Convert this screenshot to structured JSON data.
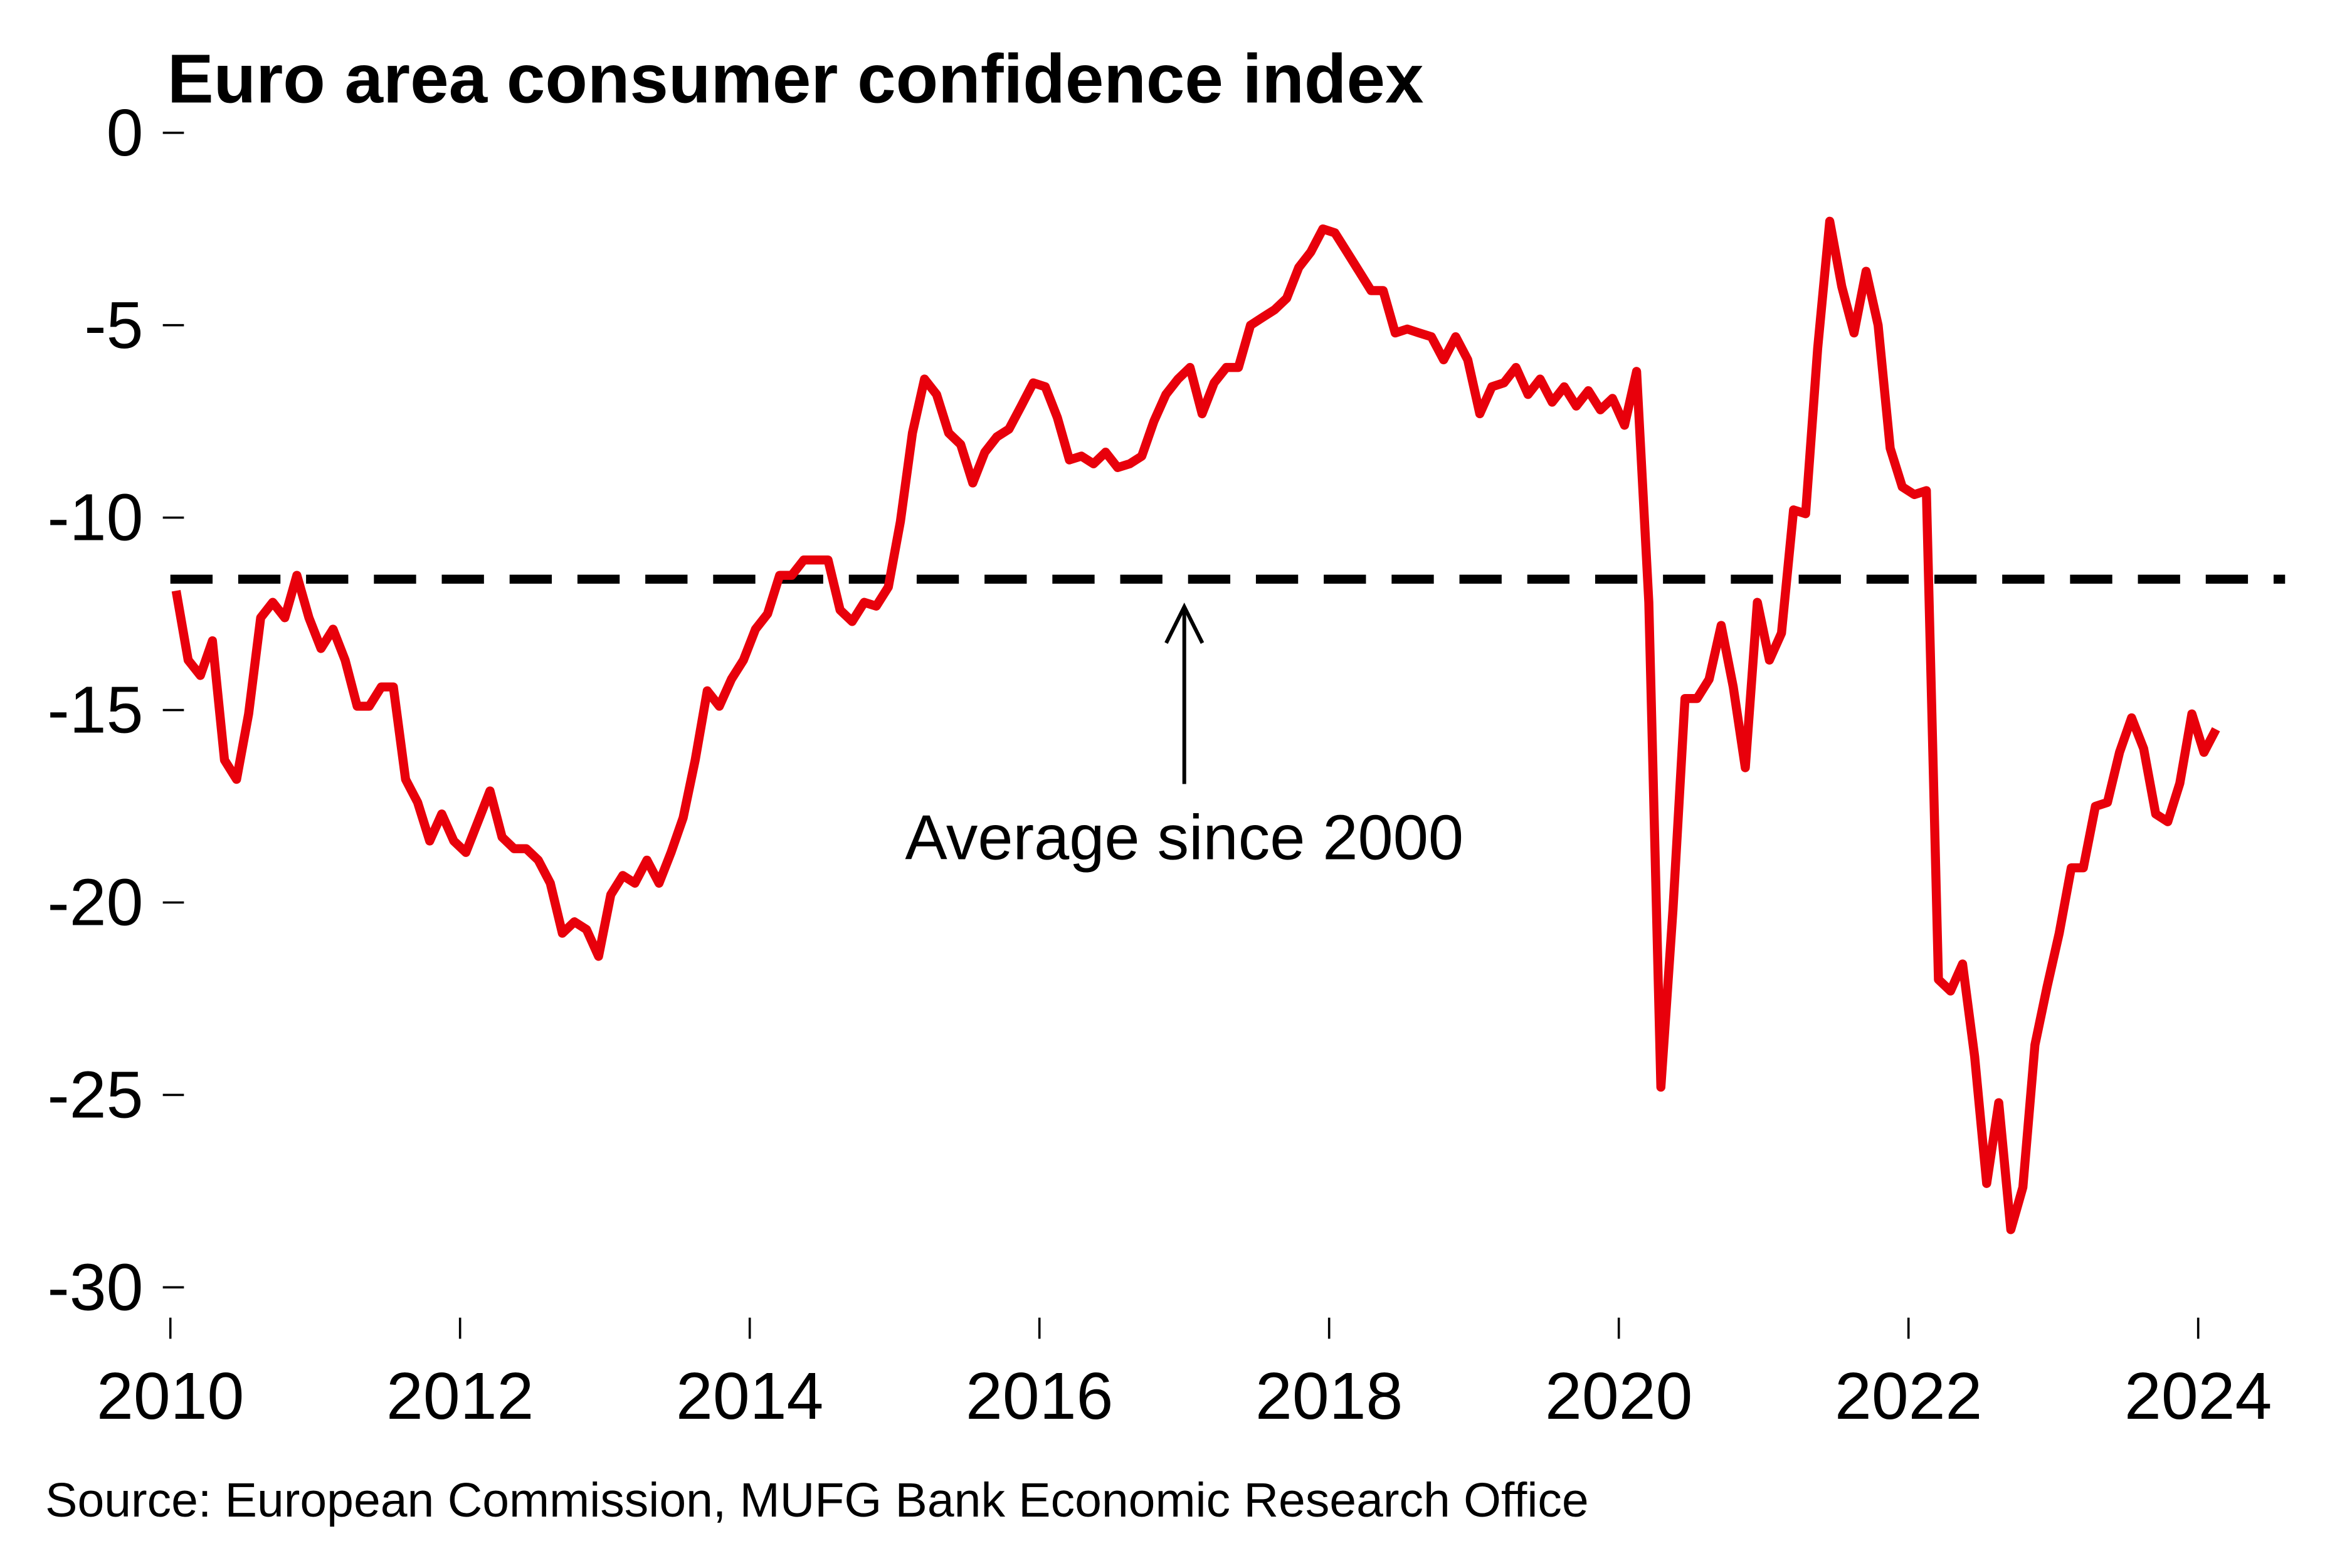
{
  "chart_data": {
    "type": "line",
    "title": "Euro area consumer confidence index",
    "source": "Source: European Commission, MUFG Bank Economic Research Office",
    "xlabel": "",
    "ylabel": "",
    "ylim": [
      -30,
      0
    ],
    "xlim": [
      2010,
      2024.6
    ],
    "y_ticks": [
      "0",
      "-5",
      "-10",
      "-15",
      "-20",
      "-25",
      "-30"
    ],
    "y_tick_values": [
      0,
      -5,
      -10,
      -15,
      -20,
      -25,
      -30
    ],
    "x_ticks": [
      "2010",
      "2012",
      "2014",
      "2016",
      "2018",
      "2020",
      "2022",
      "2024"
    ],
    "x_tick_values": [
      2010,
      2012,
      2014,
      2016,
      2018,
      2020,
      2022,
      2024
    ],
    "grid": false,
    "start": "2010-01",
    "frequency": "monthly",
    "series": [
      {
        "name": "Consumer confidence",
        "color": "#e8000b",
        "values": [
          -11.9,
          -13.7,
          -14.1,
          -13.2,
          -16.3,
          -16.8,
          -15.1,
          -12.6,
          -12.2,
          -12.6,
          -11.5,
          -12.6,
          -13.4,
          -12.9,
          -13.7,
          -14.9,
          -14.9,
          -14.4,
          -14.4,
          -16.8,
          -17.4,
          -18.4,
          -17.7,
          -18.4,
          -18.7,
          -17.9,
          -17.1,
          -18.3,
          -18.6,
          -18.6,
          -18.9,
          -19.5,
          -20.8,
          -20.5,
          -20.7,
          -21.4,
          -19.8,
          -19.3,
          -19.5,
          -18.9,
          -19.5,
          -18.7,
          -17.8,
          -16.3,
          -14.5,
          -14.9,
          -14.2,
          -13.7,
          -12.9,
          -12.5,
          -11.5,
          -11.5,
          -11.1,
          -11.1,
          -11.1,
          -12.4,
          -12.7,
          -12.2,
          -12.3,
          -11.8,
          -10.1,
          -7.8,
          -6.4,
          -6.8,
          -7.8,
          -8.1,
          -9.1,
          -8.3,
          -7.9,
          -7.7,
          -7.1,
          -6.5,
          -6.6,
          -7.4,
          -8.5,
          -8.4,
          -8.6,
          -8.3,
          -8.7,
          -8.6,
          -8.4,
          -7.5,
          -6.8,
          -6.4,
          -6.1,
          -7.3,
          -6.5,
          -6.1,
          -6.1,
          -5.0,
          -4.8,
          -4.6,
          -4.3,
          -3.5,
          -3.1,
          -2.5,
          -2.6,
          -3.1,
          -3.6,
          -4.1,
          -4.1,
          -5.2,
          -5.1,
          -5.2,
          -5.3,
          -5.9,
          -5.3,
          -5.9,
          -7.3,
          -6.6,
          -6.5,
          -6.1,
          -6.8,
          -6.4,
          -7.0,
          -6.6,
          -7.1,
          -6.7,
          -7.2,
          -6.9,
          -7.6,
          -6.2,
          -12.2,
          -24.8,
          -20.2,
          -14.7,
          -14.7,
          -14.2,
          -12.8,
          -14.4,
          -16.5,
          -12.2,
          -13.7,
          -13.0,
          -9.8,
          -9.9,
          -5.6,
          -2.3,
          -4.0,
          -5.2,
          -3.6,
          -5.0,
          -8.2,
          -9.2,
          -9.4,
          -9.3,
          -22.0,
          -22.3,
          -21.6,
          -24.0,
          -27.3,
          -25.2,
          -28.5,
          -27.4,
          -23.7,
          -22.2,
          -20.8,
          -19.1,
          -19.1,
          -17.5,
          -17.4,
          -16.1,
          -15.2,
          -16.0,
          -17.7,
          -17.9,
          -16.9,
          -15.1,
          -16.1,
          -15.5
        ]
      },
      {
        "name": "Average since 2000",
        "color": "#000000",
        "style": "dashed",
        "value": -11.6
      }
    ],
    "annotations": [
      {
        "text": "Average since 2000",
        "x": 2017.0,
        "y": -18.5,
        "arrow_to": [
          2017.0,
          -12.2
        ]
      }
    ]
  }
}
